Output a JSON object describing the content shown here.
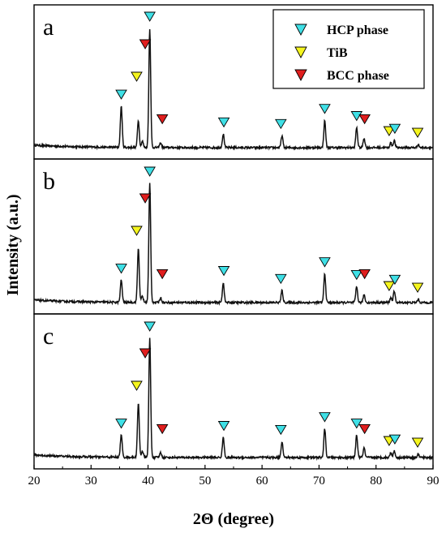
{
  "chart_data": {
    "type": "line",
    "xlabel": "2Θ (degree)",
    "ylabel": "Intensity (a.u.)",
    "xlim": [
      20,
      90
    ],
    "xticks": [
      "20",
      "30",
      "40",
      "50",
      "60",
      "70",
      "80",
      "90"
    ],
    "grid": false,
    "legend_position": "top-right",
    "legend": [
      {
        "name": "HCP phase",
        "color": "#3fe0e6"
      },
      {
        "name": "TiB",
        "color": "#f5f51e"
      },
      {
        "name": "BCC phase",
        "color": "#e01e1e"
      }
    ],
    "panels": [
      {
        "label": "a",
        "peaks": [
          {
            "x": 35.3,
            "y": 52
          },
          {
            "x": 38.3,
            "y": 34
          },
          {
            "x": 39.0,
            "y": 8
          },
          {
            "x": 40.3,
            "y": 150
          },
          {
            "x": 42.2,
            "y": 6
          },
          {
            "x": 53.2,
            "y": 17
          },
          {
            "x": 63.5,
            "y": 15
          },
          {
            "x": 71.0,
            "y": 34
          },
          {
            "x": 76.6,
            "y": 25
          },
          {
            "x": 77.9,
            "y": 12
          },
          {
            "x": 82.6,
            "y": 6
          },
          {
            "x": 83.2,
            "y": 9
          },
          {
            "x": 87.4,
            "y": 4
          }
        ],
        "markers": [
          {
            "phase": "HCP phase",
            "x": 35.3
          },
          {
            "phase": "TiB",
            "x": 38.0
          },
          {
            "phase": "BCC phase",
            "x": 39.5
          },
          {
            "phase": "HCP phase",
            "x": 40.3
          },
          {
            "phase": "BCC phase",
            "x": 42.5
          },
          {
            "phase": "HCP phase",
            "x": 53.3
          },
          {
            "phase": "HCP phase",
            "x": 63.3
          },
          {
            "phase": "HCP phase",
            "x": 71.0
          },
          {
            "phase": "HCP phase",
            "x": 76.6
          },
          {
            "phase": "BCC phase",
            "x": 78.0
          },
          {
            "phase": "TiB",
            "x": 82.3
          },
          {
            "phase": "HCP phase",
            "x": 83.3
          },
          {
            "phase": "TiB",
            "x": 87.3
          }
        ]
      },
      {
        "label": "b",
        "peaks": [
          {
            "x": 35.3,
            "y": 28
          },
          {
            "x": 38.3,
            "y": 68
          },
          {
            "x": 39.0,
            "y": 8
          },
          {
            "x": 40.3,
            "y": 150
          },
          {
            "x": 42.2,
            "y": 6
          },
          {
            "x": 53.2,
            "y": 25
          },
          {
            "x": 63.5,
            "y": 15
          },
          {
            "x": 71.0,
            "y": 36
          },
          {
            "x": 76.6,
            "y": 20
          },
          {
            "x": 77.9,
            "y": 10
          },
          {
            "x": 82.6,
            "y": 6
          },
          {
            "x": 83.2,
            "y": 14
          },
          {
            "x": 87.4,
            "y": 4
          }
        ],
        "markers": [
          {
            "phase": "HCP phase",
            "x": 35.3
          },
          {
            "phase": "TiB",
            "x": 38.0
          },
          {
            "phase": "BCC phase",
            "x": 39.5
          },
          {
            "phase": "HCP phase",
            "x": 40.3
          },
          {
            "phase": "BCC phase",
            "x": 42.5
          },
          {
            "phase": "HCP phase",
            "x": 53.3
          },
          {
            "phase": "HCP phase",
            "x": 63.3
          },
          {
            "phase": "HCP phase",
            "x": 71.0
          },
          {
            "phase": "HCP phase",
            "x": 76.6
          },
          {
            "phase": "BCC phase",
            "x": 78.0
          },
          {
            "phase": "TiB",
            "x": 82.3
          },
          {
            "phase": "HCP phase",
            "x": 83.3
          },
          {
            "phase": "TiB",
            "x": 87.3
          }
        ]
      },
      {
        "label": "c",
        "peaks": [
          {
            "x": 35.3,
            "y": 28
          },
          {
            "x": 38.3,
            "y": 68
          },
          {
            "x": 39.0,
            "y": 8
          },
          {
            "x": 40.3,
            "y": 150
          },
          {
            "x": 42.2,
            "y": 6
          },
          {
            "x": 53.2,
            "y": 25
          },
          {
            "x": 63.5,
            "y": 20
          },
          {
            "x": 71.0,
            "y": 36
          },
          {
            "x": 76.6,
            "y": 28
          },
          {
            "x": 77.9,
            "y": 12
          },
          {
            "x": 82.6,
            "y": 6
          },
          {
            "x": 83.2,
            "y": 8
          },
          {
            "x": 87.4,
            "y": 4
          }
        ],
        "markers": [
          {
            "phase": "HCP phase",
            "x": 35.3
          },
          {
            "phase": "TiB",
            "x": 38.0
          },
          {
            "phase": "BCC phase",
            "x": 39.5
          },
          {
            "phase": "HCP phase",
            "x": 40.3
          },
          {
            "phase": "BCC phase",
            "x": 42.5
          },
          {
            "phase": "HCP phase",
            "x": 53.3
          },
          {
            "phase": "HCP phase",
            "x": 63.3
          },
          {
            "phase": "HCP phase",
            "x": 71.0
          },
          {
            "phase": "HCP phase",
            "x": 76.6
          },
          {
            "phase": "BCC phase",
            "x": 78.0
          },
          {
            "phase": "TiB",
            "x": 82.3
          },
          {
            "phase": "HCP phase",
            "x": 83.3
          },
          {
            "phase": "TiB",
            "x": 87.3
          }
        ]
      }
    ]
  }
}
